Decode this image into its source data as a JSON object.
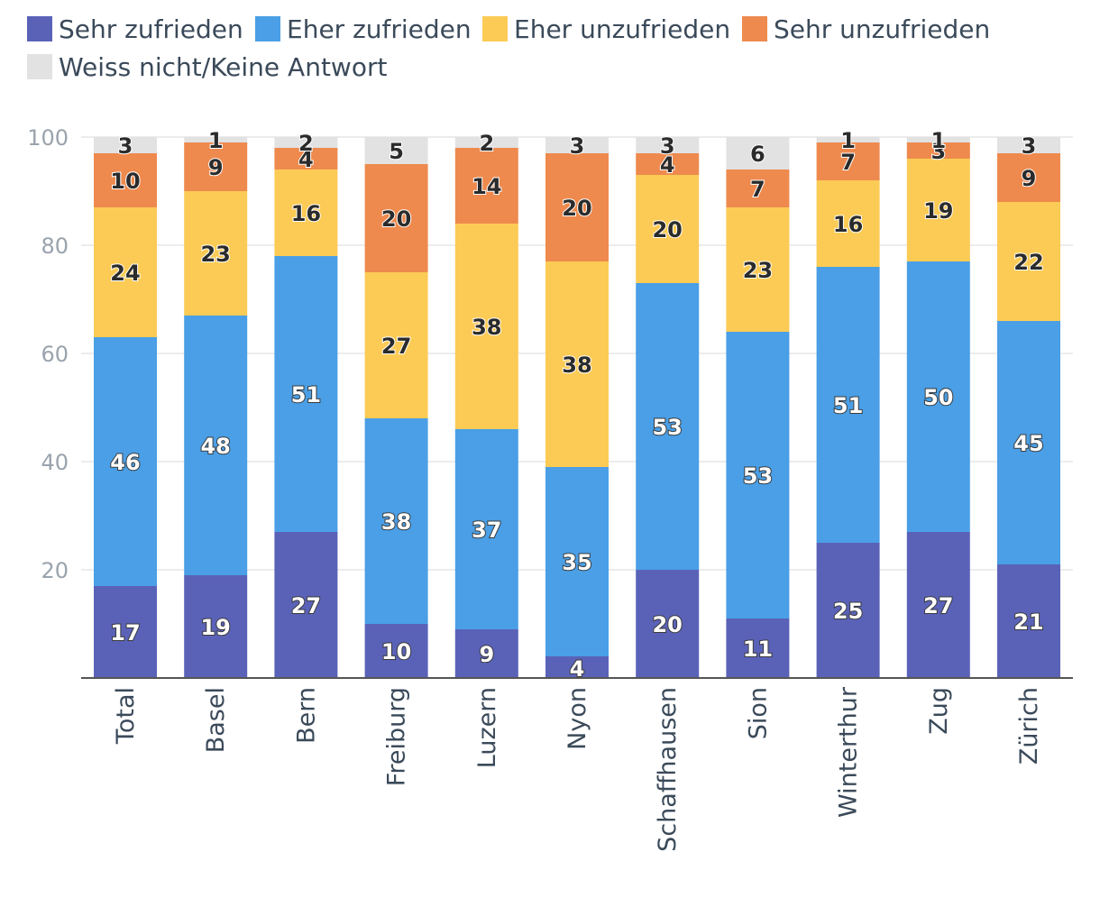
{
  "chart_data": {
    "type": "bar",
    "stacked": true,
    "categories": [
      "Total",
      "Basel",
      "Bern",
      "Freiburg",
      "Luzern",
      "Nyon",
      "Schaffhausen",
      "Sion",
      "Winterthur",
      "Zug",
      "Zürich"
    ],
    "series": [
      {
        "name": "Sehr zufrieden",
        "color": "#5a62b8",
        "values": [
          17,
          19,
          27,
          10,
          9,
          4,
          20,
          11,
          25,
          27,
          21
        ]
      },
      {
        "name": "Eher zufrieden",
        "color": "#4a9fe6",
        "values": [
          46,
          48,
          51,
          38,
          37,
          35,
          53,
          53,
          51,
          50,
          45
        ]
      },
      {
        "name": "Eher unzufrieden",
        "color": "#fccb55",
        "values": [
          24,
          23,
          16,
          27,
          38,
          38,
          20,
          23,
          16,
          19,
          22
        ]
      },
      {
        "name": "Sehr unzufrieden",
        "color": "#ee8a4e",
        "values": [
          10,
          9,
          4,
          20,
          14,
          20,
          4,
          7,
          7,
          3,
          9
        ]
      },
      {
        "name": "Weiss nicht/Keine Antwort",
        "color": "#e2e2e2",
        "values": [
          3,
          1,
          2,
          5,
          2,
          3,
          3,
          6,
          1,
          1,
          3
        ]
      }
    ],
    "ylim": [
      0,
      100
    ],
    "yticks": [
      20,
      40,
      60,
      80,
      100
    ],
    "xlabel": "",
    "ylabel": "",
    "grid": true,
    "legend": "top-left"
  }
}
